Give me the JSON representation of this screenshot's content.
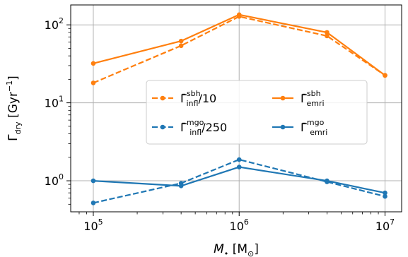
{
  "chart_data": {
    "type": "line",
    "xscale": "log",
    "yscale": "log",
    "xlim": [
      70000,
      13000000
    ],
    "ylim": [
      0.4,
      180
    ],
    "grid": true,
    "xlabel": {
      "main": "M",
      "sub": "•",
      "unit_open": " [M",
      "unit_sub": "⊙",
      "unit_close": "]"
    },
    "ylabel": {
      "main": "Γ̄",
      "sub": "dry",
      "rest": " [Gyr",
      "sup": "−1",
      "close": "]"
    },
    "xticks": [
      {
        "value": 100000,
        "base": "10",
        "exp": "5"
      },
      {
        "value": 1000000,
        "base": "10",
        "exp": "6"
      },
      {
        "value": 10000000,
        "base": "10",
        "exp": "7"
      }
    ],
    "yticks": [
      {
        "value": 1,
        "base": "10",
        "exp": "0"
      },
      {
        "value": 10,
        "base": "10",
        "exp": "1"
      },
      {
        "value": 100,
        "base": "10",
        "exp": "2"
      }
    ],
    "x": [
      100000,
      400000,
      1000000,
      4000000,
      10000000
    ],
    "legend_position": "center",
    "series": [
      {
        "key": "sbh_infl",
        "label": {
          "sym": "Γ̄",
          "sup": "sbh",
          "sub": "infl",
          "suffix": "/10"
        },
        "color": "#ff7f0e",
        "dash": true,
        "values": [
          18,
          54,
          128,
          72,
          22.5
        ]
      },
      {
        "key": "sbh_emri",
        "label": {
          "sym": "Γ̄",
          "sup": "sbh",
          "sub": "emri",
          "suffix": ""
        },
        "color": "#ff7f0e",
        "dash": false,
        "values": [
          32,
          62,
          135,
          80,
          22.5
        ]
      },
      {
        "key": "mgo_infl",
        "label": {
          "sym": "Γ̄",
          "sup": "mgo",
          "sub": "infl",
          "suffix": "/250"
        },
        "color": "#1f77b4",
        "dash": true,
        "values": [
          0.52,
          0.93,
          1.87,
          0.97,
          0.63
        ]
      },
      {
        "key": "mgo_emri",
        "label": {
          "sym": "Γ̄",
          "sup": "mgo",
          "sub": "emri",
          "suffix": ""
        },
        "color": "#1f77b4",
        "dash": false,
        "values": [
          1.0,
          0.86,
          1.5,
          1.0,
          0.7
        ]
      }
    ]
  }
}
